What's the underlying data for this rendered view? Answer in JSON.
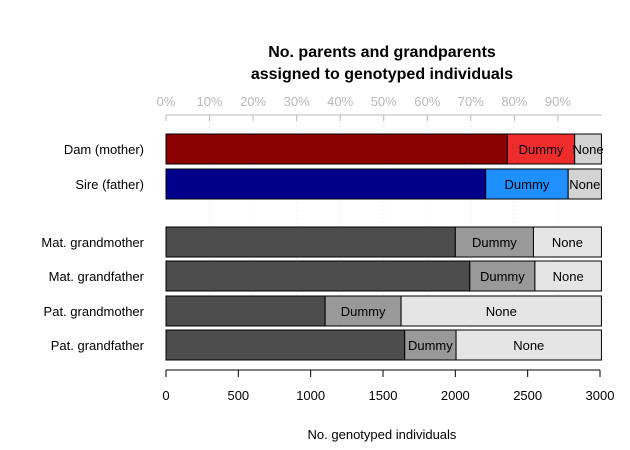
{
  "chart_data": {
    "type": "bar",
    "orientation": "horizontal",
    "stacked": true,
    "title": [
      "No. parents and grandparents",
      "assigned to genotyped individuals"
    ],
    "xlabel": "No. genotyped individuals",
    "xlim": [
      0,
      3000
    ],
    "x_ticks": [
      "0",
      "500",
      "1000",
      "1500",
      "2000",
      "2500",
      "3000"
    ],
    "percent_ticks": [
      "0%",
      "10%",
      "20%",
      "30%",
      "40%",
      "50%",
      "60%",
      "70%",
      "80%",
      "90%"
    ],
    "total": 3010,
    "rows": [
      {
        "label": "Dam (mother)",
        "segments": [
          {
            "name": "",
            "value": 2360,
            "color": "#8b0000"
          },
          {
            "name": "Dummy",
            "value": 465,
            "color": "#ee2c2c"
          },
          {
            "name": "None",
            "value": 185,
            "color": "#d3d3d3"
          }
        ]
      },
      {
        "label": "Sire (father)",
        "segments": [
          {
            "name": "",
            "value": 2210,
            "color": "#00008b"
          },
          {
            "name": "Dummy",
            "value": 570,
            "color": "#1e90ff"
          },
          {
            "name": "None",
            "value": 230,
            "color": "#d3d3d3"
          }
        ]
      },
      {
        "label": "Mat. grandmother",
        "segments": [
          {
            "name": "",
            "value": 2000,
            "color": "#4d4d4d"
          },
          {
            "name": "Dummy",
            "value": 540,
            "color": "#999999"
          },
          {
            "name": "None",
            "value": 470,
            "color": "#e5e5e5"
          }
        ]
      },
      {
        "label": "Mat. grandfather",
        "segments": [
          {
            "name": "",
            "value": 2100,
            "color": "#4d4d4d"
          },
          {
            "name": "Dummy",
            "value": 450,
            "color": "#999999"
          },
          {
            "name": "None",
            "value": 460,
            "color": "#e5e5e5"
          }
        ]
      },
      {
        "label": "Pat. grandmother",
        "segments": [
          {
            "name": "",
            "value": 1100,
            "color": "#4d4d4d"
          },
          {
            "name": "Dummy",
            "value": 525,
            "color": "#999999"
          },
          {
            "name": "None",
            "value": 1385,
            "color": "#e5e5e5"
          }
        ]
      },
      {
        "label": "Pat. grandfather",
        "segments": [
          {
            "name": "",
            "value": 1650,
            "color": "#4d4d4d"
          },
          {
            "name": "Dummy",
            "value": 355,
            "color": "#999999"
          },
          {
            "name": "None",
            "value": 1005,
            "color": "#e5e5e5"
          }
        ]
      }
    ]
  }
}
